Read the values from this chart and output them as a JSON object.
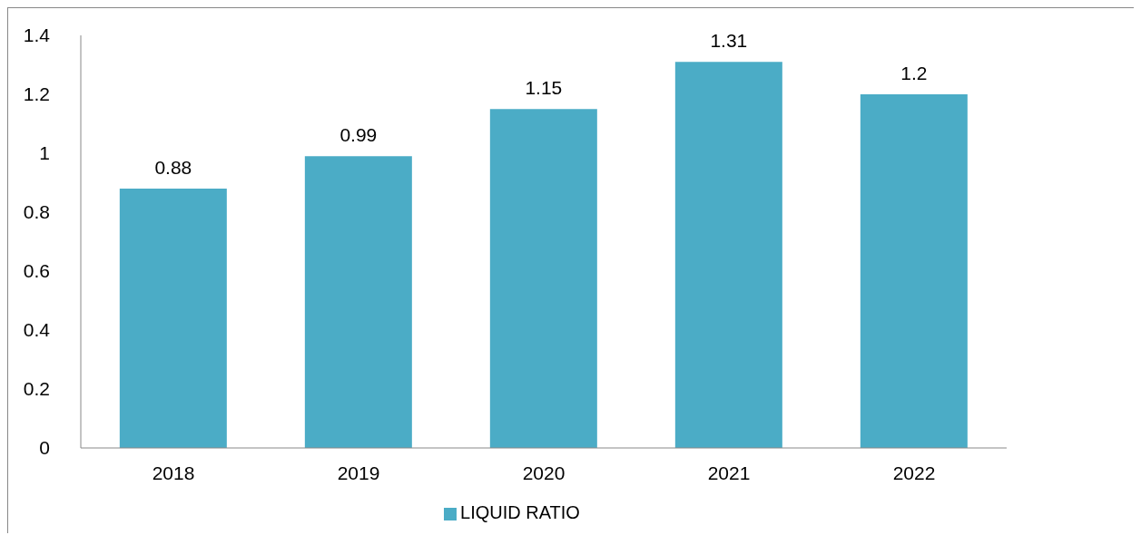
{
  "chart_data": {
    "type": "bar",
    "categories": [
      "2018",
      "2019",
      "2020",
      "2021",
      "2022"
    ],
    "series": [
      {
        "name": "LIQUID RATIO",
        "color": "#4bacc6",
        "values": [
          0.88,
          0.99,
          1.15,
          1.31,
          1.2
        ]
      }
    ],
    "ylim": [
      0,
      1.4
    ],
    "yticks": [
      0,
      0.2,
      0.4,
      0.6,
      0.8,
      1,
      1.2,
      1.4
    ],
    "grid": false,
    "legend": "bottom",
    "data_labels": true
  }
}
